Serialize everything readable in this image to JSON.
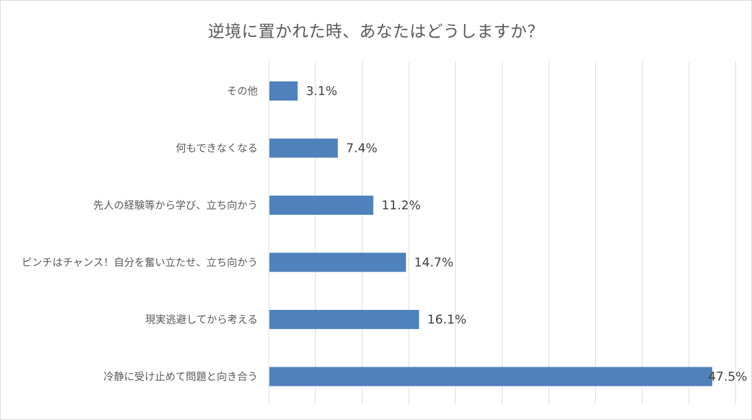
{
  "chart_data": {
    "type": "bar",
    "orientation": "horizontal",
    "title": "逆境に置かれた時、あなたはどうしますか？",
    "categories": [
      "その他",
      "何もできなくなる",
      "先人の経験等から学び、立ち向かう",
      "ピンチはチャンス！自分を奮い立たせ、立ち向かう",
      "現実逃避してから考える",
      "冷静に受け止めて問題と向き合う"
    ],
    "values": [
      3.1,
      7.4,
      11.2,
      14.7,
      16.1,
      47.5
    ],
    "value_labels": [
      "3.1%",
      "7.4%",
      "11.2%",
      "14.7%",
      "16.1%",
      "47.5%"
    ],
    "unit": "%",
    "xlim": [
      0,
      50
    ],
    "grid": true,
    "legend": "none",
    "bar_color": "#4f81bd",
    "gridline_color": "#d9d9d9"
  }
}
